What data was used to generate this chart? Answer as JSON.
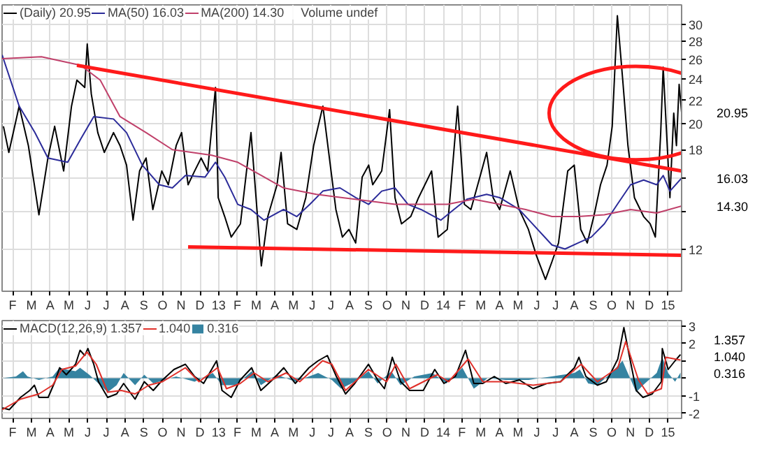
{
  "chart_data": [
    {
      "type": "line",
      "log": "y",
      "grid": true,
      "legend": "top left",
      "xlim": [
        2012.036,
        2015.061
      ],
      "ylim": [
        10.1,
        32.5
      ],
      "xticks": [
        {
          "value": 2012.083,
          "label": "F"
        },
        {
          "value": 2012.167,
          "label": "M"
        },
        {
          "value": 2012.25,
          "label": "A"
        },
        {
          "value": 2012.333,
          "label": "M"
        },
        {
          "value": 2012.417,
          "label": "J"
        },
        {
          "value": 2012.5,
          "label": "J"
        },
        {
          "value": 2012.583,
          "label": "A"
        },
        {
          "value": 2012.667,
          "label": "S"
        },
        {
          "value": 2012.75,
          "label": "O"
        },
        {
          "value": 2012.833,
          "label": "N"
        },
        {
          "value": 2012.917,
          "label": "D"
        },
        {
          "value": 2013,
          "label": "13"
        },
        {
          "value": 2013.083,
          "label": "F"
        },
        {
          "value": 2013.167,
          "label": "M"
        },
        {
          "value": 2013.25,
          "label": "A"
        },
        {
          "value": 2013.333,
          "label": "M"
        },
        {
          "value": 2013.417,
          "label": "J"
        },
        {
          "value": 2013.5,
          "label": "J"
        },
        {
          "value": 2013.583,
          "label": "A"
        },
        {
          "value": 2013.667,
          "label": "S"
        },
        {
          "value": 2013.75,
          "label": "O"
        },
        {
          "value": 2013.833,
          "label": "N"
        },
        {
          "value": 2013.917,
          "label": "D"
        },
        {
          "value": 2014,
          "label": "14"
        },
        {
          "value": 2014.083,
          "label": "F"
        },
        {
          "value": 2014.167,
          "label": "M"
        },
        {
          "value": 2014.25,
          "label": "A"
        },
        {
          "value": 2014.333,
          "label": "M"
        },
        {
          "value": 2014.417,
          "label": "J"
        },
        {
          "value": 2014.5,
          "label": "J"
        },
        {
          "value": 2014.583,
          "label": "A"
        },
        {
          "value": 2014.667,
          "label": "S"
        },
        {
          "value": 2014.75,
          "label": "O"
        },
        {
          "value": 2014.833,
          "label": "N"
        },
        {
          "value": 2014.917,
          "label": "D"
        },
        {
          "value": 2015,
          "label": "15"
        }
      ],
      "yticks": [
        12,
        {
          "value": 14,
          "label": null
        },
        {
          "value": 16,
          "label": null
        },
        18,
        20,
        22,
        24,
        26,
        28,
        30
      ],
      "series": [
        {
          "name": "(Daily) 20.95",
          "color": "#000000",
          "x": [
            2012.042,
            2012.066,
            2012.112,
            2012.153,
            2012.2,
            2012.24,
            2012.27,
            2012.31,
            2012.345,
            2012.369,
            2012.404,
            2012.415,
            2012.433,
            2012.462,
            2012.491,
            2012.532,
            2012.561,
            2012.59,
            2012.619,
            2012.648,
            2012.677,
            2012.707,
            2012.747,
            2012.776,
            2012.811,
            2012.835,
            2012.864,
            2012.893,
            2012.922,
            2012.951,
            2012.986,
            2012.998,
            2013.027,
            2013.056,
            2013.097,
            2013.144,
            2013.19,
            2013.219,
            2013.26,
            2013.278,
            2013.307,
            2013.348,
            2013.388,
            2013.423,
            2013.464,
            2013.493,
            2013.522,
            2013.551,
            2013.58,
            2013.61,
            2013.639,
            2013.668,
            2013.686,
            2013.726,
            2013.761,
            2013.785,
            2013.814,
            2013.855,
            2013.89,
            2013.948,
            2013.977,
            2014.018,
            2014.064,
            2014.094,
            2014.123,
            2014.163,
            2014.193,
            2014.222,
            2014.251,
            2014.298,
            2014.338,
            2014.379,
            2014.414,
            2014.455,
            2014.484,
            2014.513,
            2014.554,
            2014.583,
            2014.612,
            2014.641,
            2014.67,
            2014.7,
            2014.729,
            2014.752,
            2014.775,
            2014.799,
            2014.822,
            2014.851,
            2014.892,
            2014.921,
            2014.944,
            2014.968,
            2014.979,
            2014.997,
            2015.009,
            2015.026,
            2015.038,
            2015.05,
            2015.061
          ],
          "values": [
            19.8,
            17.8,
            21.5,
            18.3,
            13.8,
            17.4,
            19.8,
            16.5,
            21.5,
            23.9,
            23.2,
            27.7,
            22.6,
            19.3,
            17.8,
            19.3,
            18.3,
            16.9,
            13.5,
            16.5,
            17.4,
            14.1,
            16.5,
            15.6,
            18.3,
            19.3,
            15.6,
            16.5,
            17.4,
            16.5,
            23.2,
            14.8,
            13.7,
            12.6,
            13.3,
            19.3,
            11.2,
            13.7,
            15.6,
            17.8,
            13.3,
            13.0,
            14.8,
            18.3,
            21.5,
            17.4,
            14.1,
            12.6,
            13.0,
            12.3,
            16.1,
            16.9,
            15.6,
            16.5,
            21.2,
            14.8,
            13.3,
            13.7,
            14.8,
            16.5,
            12.6,
            13.0,
            21.5,
            14.4,
            14.1,
            16.1,
            17.8,
            14.8,
            14.1,
            16.5,
            14.1,
            13.0,
            11.7,
            10.6,
            11.4,
            12.3,
            16.5,
            16.9,
            13.0,
            12.3,
            13.7,
            15.6,
            16.9,
            19.8,
            31.1,
            23.9,
            18.3,
            14.8,
            13.7,
            13.3,
            12.6,
            19.3,
            25.2,
            18.3,
            14.8,
            20.9,
            18.3,
            23.5,
            20.95
          ]
        },
        {
          "name": "MA(50) 16.03",
          "color": "#2b2b99",
          "x": [
            2012.036,
            2012.112,
            2012.182,
            2012.24,
            2012.328,
            2012.386,
            2012.444,
            2012.532,
            2012.59,
            2012.66,
            2012.736,
            2012.794,
            2012.852,
            2012.94,
            2012.986,
            2013.027,
            2013.085,
            2013.144,
            2013.202,
            2013.289,
            2013.348,
            2013.406,
            2013.464,
            2013.54,
            2013.61,
            2013.668,
            2013.726,
            2013.785,
            2013.843,
            2013.901,
            2013.989,
            2014.047,
            2014.105,
            2014.193,
            2014.251,
            2014.338,
            2014.397,
            2014.484,
            2014.542,
            2014.6,
            2014.659,
            2014.717,
            2014.775,
            2014.834,
            2014.892,
            2014.95,
            2014.979,
            2015.009,
            2015.061
          ],
          "values": [
            26.5,
            21.5,
            19.3,
            17.4,
            17.1,
            18.8,
            20.6,
            20.4,
            19.3,
            16.9,
            15.6,
            15.4,
            16.2,
            16.1,
            17.1,
            16.1,
            14.4,
            14.1,
            13.5,
            14.1,
            13.7,
            14.4,
            15.2,
            15.4,
            14.8,
            14.4,
            15.2,
            15.4,
            14.4,
            14.1,
            13.5,
            14.1,
            14.7,
            15.0,
            14.8,
            14.1,
            13.3,
            12.2,
            12.0,
            12.3,
            12.6,
            13.3,
            14.4,
            15.6,
            15.9,
            15.6,
            16.2,
            15.2,
            16.03
          ]
        },
        {
          "name": "MA(200) 14.30",
          "color": "#c0406a",
          "x": [
            2012.036,
            2012.211,
            2012.386,
            2012.473,
            2012.561,
            2012.677,
            2012.794,
            2012.969,
            2013.085,
            2013.202,
            2013.289,
            2013.435,
            2013.551,
            2013.668,
            2013.785,
            2013.901,
            2014.018,
            2014.134,
            2014.251,
            2014.367,
            2014.484,
            2014.6,
            2014.717,
            2014.834,
            2014.95,
            2015.061
          ],
          "values": [
            26.1,
            26.3,
            25.4,
            23.9,
            20.6,
            19.3,
            18.0,
            17.6,
            17.1,
            16.1,
            15.4,
            15.0,
            14.8,
            14.6,
            14.4,
            14.4,
            14.4,
            14.7,
            14.4,
            14.1,
            13.7,
            13.7,
            13.8,
            14.1,
            13.9,
            14.3
          ]
        },
        {
          "type": "line",
          "color": "#ff1a1a",
          "x": [
            2012.369,
            2015.061
          ],
          "values": [
            25.4,
            16.5
          ]
        },
        {
          "type": "line",
          "color": "#ff1a1a",
          "x": [
            2012.864,
            2015.061
          ],
          "values": [
            12.1,
            11.7
          ]
        }
      ],
      "annotations": [
        "Volume undef",
        "20.95",
        "16.03",
        "14.30"
      ]
    },
    {
      "type": "line",
      "grid": true,
      "legend": "top left",
      "xlim": [
        2012.036,
        2015.061
      ],
      "ylim": [
        -2.3,
        3.3
      ],
      "xticks": [
        {
          "value": 2012.083,
          "label": "F"
        },
        {
          "value": 2012.167,
          "label": "M"
        },
        {
          "value": 2012.25,
          "label": "A"
        },
        {
          "value": 2012.333,
          "label": "M"
        },
        {
          "value": 2012.417,
          "label": "J"
        },
        {
          "value": 2012.5,
          "label": "J"
        },
        {
          "value": 2012.583,
          "label": "A"
        },
        {
          "value": 2012.667,
          "label": "S"
        },
        {
          "value": 2012.75,
          "label": "O"
        },
        {
          "value": 2012.833,
          "label": "N"
        },
        {
          "value": 2012.917,
          "label": "D"
        },
        {
          "value": 2013,
          "label": "13"
        },
        {
          "value": 2013.083,
          "label": "F"
        },
        {
          "value": 2013.167,
          "label": "M"
        },
        {
          "value": 2013.25,
          "label": "A"
        },
        {
          "value": 2013.333,
          "label": "M"
        },
        {
          "value": 2013.417,
          "label": "J"
        },
        {
          "value": 2013.5,
          "label": "J"
        },
        {
          "value": 2013.583,
          "label": "A"
        },
        {
          "value": 2013.667,
          "label": "S"
        },
        {
          "value": 2013.75,
          "label": "O"
        },
        {
          "value": 2013.833,
          "label": "N"
        },
        {
          "value": 2013.917,
          "label": "D"
        },
        {
          "value": 2014,
          "label": "14"
        },
        {
          "value": 2014.083,
          "label": "F"
        },
        {
          "value": 2014.167,
          "label": "M"
        },
        {
          "value": 2014.25,
          "label": "A"
        },
        {
          "value": 2014.333,
          "label": "M"
        },
        {
          "value": 2014.417,
          "label": "J"
        },
        {
          "value": 2014.5,
          "label": "J"
        },
        {
          "value": 2014.583,
          "label": "A"
        },
        {
          "value": 2014.667,
          "label": "S"
        },
        {
          "value": 2014.75,
          "label": "O"
        },
        {
          "value": 2014.833,
          "label": "N"
        },
        {
          "value": 2014.917,
          "label": "D"
        },
        {
          "value": 2015,
          "label": "15"
        }
      ],
      "yticks": [
        -2,
        -1,
        {
          "value": 0,
          "label": null
        },
        {
          "value": 1,
          "label": null
        },
        2,
        3
      ],
      "series": [
        {
          "name": "0.316",
          "type": "area",
          "color": "#2a7c9c",
          "x": [
            2012.037,
            2012.098,
            2012.129,
            2012.149,
            2012.2,
            2012.261,
            2012.292,
            2012.322,
            2012.363,
            2012.383,
            2012.424,
            2012.465,
            2012.506,
            2012.546,
            2012.577,
            2012.628,
            2012.669,
            2012.709,
            2012.811,
            2012.893,
            2012.974,
            2013.015,
            2013.076,
            2013.147,
            2013.188,
            2013.259,
            2013.341,
            2013.443,
            2013.504,
            2013.545,
            2013.606,
            2013.667,
            2013.708,
            2013.769,
            2013.81,
            2013.871,
            2013.952,
            2014.013,
            2014.085,
            2014.136,
            2014.197,
            2014.278,
            2014.38,
            2014.482,
            2014.584,
            2014.608,
            2014.645,
            2014.686,
            2014.747,
            2014.798,
            2014.818,
            2014.859,
            2014.889,
            2014.95,
            2014.975,
            2015.001,
            2015.032,
            2015.056
          ],
          "values": [
            0,
            0.1,
            0.4,
            0.1,
            -0.1,
            0.1,
            0.6,
            0.5,
            0.4,
            0.6,
            0.2,
            -0.3,
            -0.8,
            -0.4,
            0.3,
            -0.4,
            0.2,
            -0.3,
            0.1,
            -0.2,
            0.3,
            -0.4,
            -0.4,
            0.4,
            -0.4,
            0.2,
            -0.2,
            0.3,
            -0.1,
            -0.6,
            -0.2,
            0.4,
            -0.3,
            0.4,
            -0.4,
            0.1,
            0.3,
            -0.3,
            0.6,
            -0.6,
            0,
            -0.1,
            -0.1,
            0.1,
            0.3,
            0.5,
            -0.3,
            -0.4,
            0.3,
            1.0,
            0.4,
            -0.8,
            -0.4,
            0.3,
            1.2,
            0.3,
            -0.2,
            0.316
          ]
        },
        {
          "name": "MACD(12,26,9) 1.357",
          "color": "#000000",
          "x": [
            2012.037,
            2012.068,
            2012.118,
            2012.159,
            2012.18,
            2012.2,
            2012.241,
            2012.271,
            2012.292,
            2012.322,
            2012.363,
            2012.383,
            2012.404,
            2012.418,
            2012.444,
            2012.465,
            2012.506,
            2012.546,
            2012.577,
            2012.628,
            2012.669,
            2012.709,
            2012.75,
            2012.801,
            2012.852,
            2012.893,
            2012.933,
            2012.991,
            2013.015,
            2013.056,
            2013.096,
            2013.147,
            2013.188,
            2013.239,
            2013.29,
            2013.341,
            2013.402,
            2013.443,
            2013.484,
            2013.524,
            2013.565,
            2013.606,
            2013.667,
            2013.708,
            2013.738,
            2013.773,
            2013.81,
            2013.85,
            2013.911,
            2013.962,
            2014.003,
            2014.054,
            2014.099,
            2014.136,
            2014.176,
            2014.227,
            2014.278,
            2014.339,
            2014.4,
            2014.461,
            2014.522,
            2014.584,
            2014.604,
            2014.635,
            2014.686,
            2014.726,
            2014.777,
            2014.804,
            2014.828,
            2014.859,
            2014.889,
            2014.93,
            2014.971,
            2014.975,
            2015.001,
            2015.032,
            2015.056
          ],
          "values": [
            -1.7,
            -1.8,
            -1.1,
            -0.7,
            -0.4,
            -1.1,
            -1.1,
            -0.2,
            0.6,
            0.2,
            0.8,
            1.6,
            1.3,
            1.7,
            0.8,
            -0.2,
            -1.1,
            -0.9,
            -0.3,
            -1.2,
            -0.2,
            -0.7,
            -0.1,
            0.5,
            0.8,
            0.1,
            -0.3,
            1.0,
            -0.7,
            -1.1,
            -0.1,
            0.6,
            -0.7,
            -0.1,
            0.6,
            -0.3,
            0.6,
            1.0,
            1.3,
            0.1,
            -0.9,
            -0.3,
            0.8,
            -0.1,
            -0.6,
            1.2,
            -0.2,
            -0.7,
            -0.7,
            0.5,
            -0.3,
            0.1,
            1.6,
            -0.3,
            -0.3,
            0.1,
            -0.3,
            -0.1,
            -0.6,
            -0.3,
            -0.2,
            0.6,
            1.2,
            0.1,
            -0.4,
            -0.2,
            1.1,
            2.9,
            1.3,
            -0.7,
            -1.1,
            -0.9,
            -0.2,
            1.7,
            0.5,
            1.0,
            1.357
          ]
        },
        {
          "name": "1.040",
          "color": "#e0302a",
          "x": [
            2012.037,
            2012.118,
            2012.2,
            2012.261,
            2012.302,
            2012.363,
            2012.414,
            2012.455,
            2012.506,
            2012.567,
            2012.628,
            2012.689,
            2012.75,
            2012.852,
            2012.913,
            2012.995,
            2013.035,
            2013.096,
            2013.158,
            2013.219,
            2013.3,
            2013.361,
            2013.463,
            2013.504,
            2013.565,
            2013.667,
            2013.748,
            2013.789,
            2013.85,
            2013.973,
            2014.024,
            2014.111,
            2014.176,
            2014.278,
            2014.4,
            2014.522,
            2014.614,
            2014.686,
            2014.777,
            2014.812,
            2014.869,
            2014.91,
            2014.971,
            2014.991,
            2015.056
          ],
          "values": [
            -1.8,
            -1.2,
            -0.9,
            -0.4,
            0.5,
            0.7,
            1.5,
            0.8,
            -0.8,
            -0.7,
            -0.9,
            -0.4,
            -0.2,
            0.6,
            -0.2,
            0.6,
            -0.6,
            -0.3,
            0.3,
            -0.2,
            0.3,
            -0.2,
            1.0,
            0.8,
            -0.7,
            0.5,
            -0.2,
            0.8,
            -0.6,
            0.2,
            -0.2,
            1.1,
            -0.2,
            -0.2,
            -0.4,
            -0.2,
            0.8,
            -0.2,
            0.6,
            2.1,
            -0.1,
            -0.9,
            -0.6,
            1.2,
            1.04
          ]
        }
      ],
      "annotations": [
        "1.357",
        "1.040",
        "0.316"
      ]
    }
  ]
}
